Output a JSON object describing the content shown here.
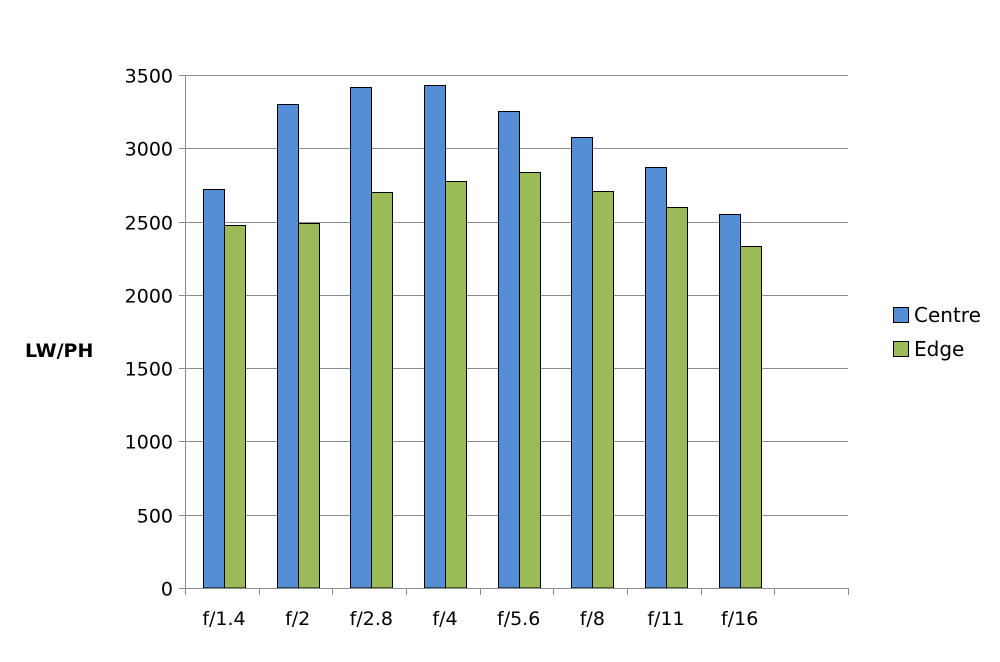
{
  "chart_data": {
    "type": "bar",
    "categories": [
      "f/1.4",
      "f/2",
      "f/2.8",
      "f/4",
      "f/5.6",
      "f/8",
      "f/11",
      "f/16"
    ],
    "series": [
      {
        "name": "Centre",
        "color": "#558ed5",
        "values": [
          2720,
          3300,
          3420,
          3430,
          3255,
          3075,
          2875,
          2550
        ]
      },
      {
        "name": "Edge",
        "color": "#9bbb59",
        "values": [
          2480,
          2490,
          2700,
          2780,
          2840,
          2710,
          2600,
          2330
        ]
      }
    ],
    "ylabel": "LW/PH",
    "ylim": [
      0,
      3500
    ],
    "yticks": [
      0,
      500,
      1000,
      1500,
      2000,
      2500,
      3000,
      3500
    ],
    "grid": true,
    "legend": "right",
    "category_slots": 9
  }
}
